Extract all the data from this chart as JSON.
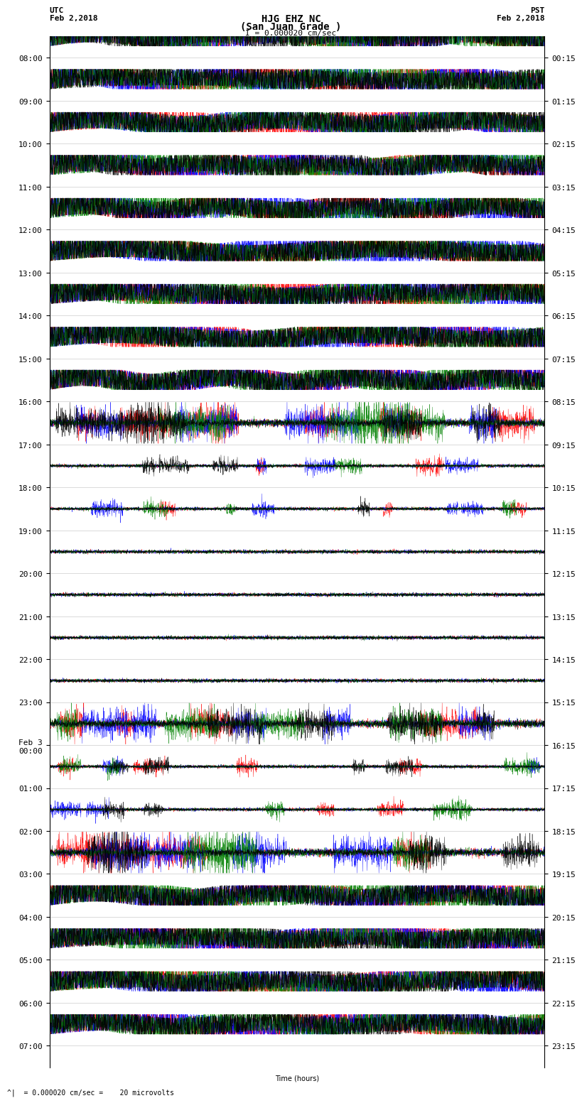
{
  "title_line1": "HJG EHZ NC",
  "title_line2": "(San Juan Grade )",
  "title_line3": "I = 0.000020 cm/sec",
  "left_timezone": "UTC",
  "left_date": "Feb 2,2018",
  "right_timezone": "PST",
  "right_date": "Feb 2,2018",
  "footer": "= 0.000020 cm/sec =    20 microvolts",
  "xlabel": "Time (hours)",
  "left_ticks": [
    "08:00",
    "09:00",
    "10:00",
    "11:00",
    "12:00",
    "13:00",
    "14:00",
    "15:00",
    "16:00",
    "17:00",
    "18:00",
    "19:00",
    "20:00",
    "21:00",
    "22:00",
    "23:00",
    "Feb 3\n00:00",
    "01:00",
    "02:00",
    "03:00",
    "04:00",
    "05:00",
    "06:00",
    "07:00"
  ],
  "right_ticks": [
    "00:15",
    "01:15",
    "02:15",
    "03:15",
    "04:15",
    "05:15",
    "06:15",
    "07:15",
    "08:15",
    "09:15",
    "10:15",
    "11:15",
    "12:15",
    "13:15",
    "14:15",
    "15:15",
    "16:15",
    "17:15",
    "18:15",
    "19:15",
    "20:15",
    "21:15",
    "22:15",
    "23:15"
  ],
  "num_rows": 24,
  "bg_color": "white",
  "plot_colors": [
    "red",
    "blue",
    "green",
    "black"
  ],
  "title_fontsize": 10,
  "tick_fontsize": 8,
  "fig_width": 8.5,
  "fig_height": 16.13
}
